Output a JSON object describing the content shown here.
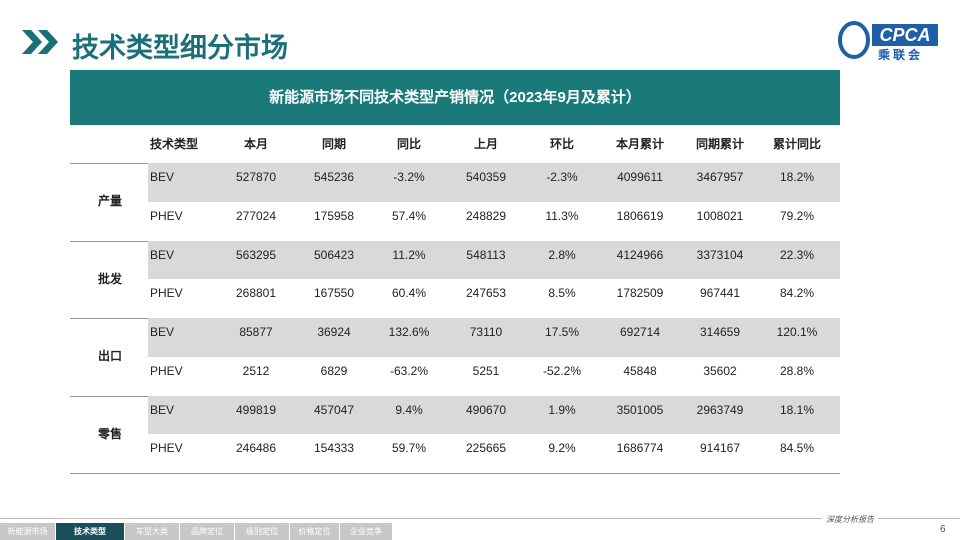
{
  "header": {
    "title": "技术类型细分市场",
    "logo_text": "CPCA",
    "logo_subtext": "乘联会"
  },
  "table": {
    "title": "新能源市场不同技术类型产销情况（2023年9月及累计）",
    "columns": [
      "技术类型",
      "本月",
      "同期",
      "同比",
      "上月",
      "环比",
      "本月累计",
      "同期累计",
      "累计同比"
    ],
    "groups": [
      {
        "label": "产量",
        "rows": [
          [
            "BEV",
            "527870",
            "545236",
            "-3.2%",
            "540359",
            "-2.3%",
            "4099611",
            "3467957",
            "18.2%"
          ],
          [
            "PHEV",
            "277024",
            "175958",
            "57.4%",
            "248829",
            "11.3%",
            "1806619",
            "1008021",
            "79.2%"
          ]
        ]
      },
      {
        "label": "批发",
        "rows": [
          [
            "BEV",
            "563295",
            "506423",
            "11.2%",
            "548113",
            "2.8%",
            "4124966",
            "3373104",
            "22.3%"
          ],
          [
            "PHEV",
            "268801",
            "167550",
            "60.4%",
            "247653",
            "8.5%",
            "1782509",
            "967441",
            "84.2%"
          ]
        ]
      },
      {
        "label": "出口",
        "rows": [
          [
            "BEV",
            "85877",
            "36924",
            "132.6%",
            "73110",
            "17.5%",
            "692714",
            "314659",
            "120.1%"
          ],
          [
            "PHEV",
            "2512",
            "6829",
            "-63.2%",
            "5251",
            "-52.2%",
            "45848",
            "35602",
            "28.8%"
          ]
        ]
      },
      {
        "label": "零售",
        "rows": [
          [
            "BEV",
            "499819",
            "457047",
            "9.4%",
            "490670",
            "1.9%",
            "3501005",
            "2963749",
            "18.1%"
          ],
          [
            "PHEV",
            "246486",
            "154333",
            "59.7%",
            "225665",
            "9.2%",
            "1686774",
            "914167",
            "84.5%"
          ]
        ]
      }
    ]
  },
  "footer": {
    "tabs": [
      "新能源市场",
      "技术类型",
      "车型大类",
      "品牌定位",
      "级别定位",
      "价格定位",
      "企业竞争"
    ],
    "active_tab": 1,
    "report_label": "深度分析报告",
    "page_number": "6"
  }
}
